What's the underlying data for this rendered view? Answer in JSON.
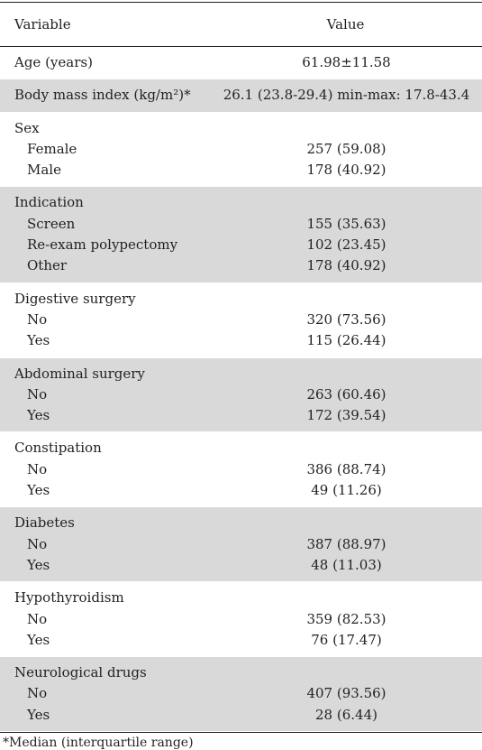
{
  "header": {
    "variable": "Variable",
    "value": "Value"
  },
  "groups": [
    {
      "shaded": false,
      "rows": [
        {
          "label": "Age (years)",
          "value": "61.98±11.58",
          "indent": false
        }
      ]
    },
    {
      "shaded": true,
      "rows": [
        {
          "label": "Body mass index (kg/m²)*",
          "value": "26.1 (23.8-29.4) min-max: 17.8-43.4",
          "indent": false
        }
      ]
    },
    {
      "shaded": false,
      "rows": [
        {
          "label": "Sex",
          "value": "",
          "indent": false
        },
        {
          "label": "Female",
          "value": "257 (59.08)",
          "indent": true
        },
        {
          "label": "Male",
          "value": "178 (40.92)",
          "indent": true
        }
      ]
    },
    {
      "shaded": true,
      "rows": [
        {
          "label": "Indication",
          "value": "",
          "indent": false
        },
        {
          "label": "Screen",
          "value": "155 (35.63)",
          "indent": true
        },
        {
          "label": "Re-exam polypectomy",
          "value": "102 (23.45)",
          "indent": true
        },
        {
          "label": "Other",
          "value": "178 (40.92)",
          "indent": true
        }
      ]
    },
    {
      "shaded": false,
      "rows": [
        {
          "label": "Digestive surgery",
          "value": "",
          "indent": false
        },
        {
          "label": "No",
          "value": "320 (73.56)",
          "indent": true
        },
        {
          "label": "Yes",
          "value": "115 (26.44)",
          "indent": true
        }
      ]
    },
    {
      "shaded": true,
      "rows": [
        {
          "label": "Abdominal surgery",
          "value": "",
          "indent": false
        },
        {
          "label": "No",
          "value": "263 (60.46)",
          "indent": true
        },
        {
          "label": "Yes",
          "value": "172 (39.54)",
          "indent": true
        }
      ]
    },
    {
      "shaded": false,
      "rows": [
        {
          "label": "Constipation",
          "value": "",
          "indent": false
        },
        {
          "label": "No",
          "value": "386 (88.74)",
          "indent": true
        },
        {
          "label": "Yes",
          "value": "49 (11.26)",
          "indent": true
        }
      ]
    },
    {
      "shaded": true,
      "rows": [
        {
          "label": "Diabetes",
          "value": "",
          "indent": false
        },
        {
          "label": "No",
          "value": "387 (88.97)",
          "indent": true
        },
        {
          "label": "Yes",
          "value": "48 (11.03)",
          "indent": true
        }
      ]
    },
    {
      "shaded": false,
      "rows": [
        {
          "label": "Hypothyroidism",
          "value": "",
          "indent": false
        },
        {
          "label": "No",
          "value": "359 (82.53)",
          "indent": true
        },
        {
          "label": "Yes",
          "value": "76 (17.47)",
          "indent": true
        }
      ]
    },
    {
      "shaded": true,
      "rows": [
        {
          "label": "Neurological drugs",
          "value": "",
          "indent": false
        },
        {
          "label": "No",
          "value": "407 (93.56)",
          "indent": true
        },
        {
          "label": "Yes",
          "value": "28 (6.44)",
          "indent": true
        }
      ]
    }
  ],
  "footnote": "*Median (interquartile range)"
}
